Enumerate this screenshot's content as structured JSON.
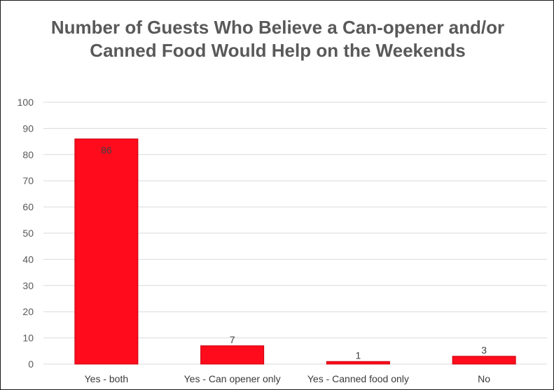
{
  "chart_data": {
    "type": "bar",
    "title": "Number of Guests Who Believe a Can-opener and/or Canned Food Would Help on the Weekends",
    "categories": [
      "Yes - both",
      "Yes - Can opener only",
      "Yes - Canned food only",
      "No"
    ],
    "values": [
      86,
      7,
      1,
      3
    ],
    "data_labels": [
      "86",
      "7",
      "1",
      "3"
    ],
    "y_ticks": [
      0,
      10,
      20,
      30,
      40,
      50,
      60,
      70,
      80,
      90,
      100
    ],
    "ylim": [
      0,
      100
    ],
    "xlabel": "",
    "ylabel": "",
    "grid": true,
    "legend": "none",
    "bar_color": "#ff0b1c",
    "bar_edge_color": "#c8000e",
    "grid_color": "#d9d9d9",
    "title_color": "#595959"
  }
}
